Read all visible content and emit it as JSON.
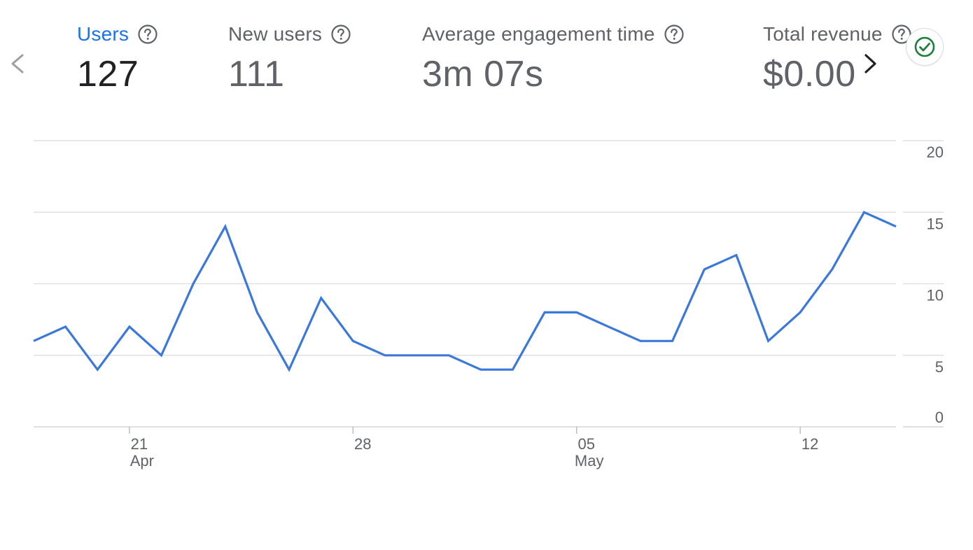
{
  "metrics": [
    {
      "label": "Users",
      "value": "127",
      "active": true
    },
    {
      "label": "New users",
      "value": "111",
      "active": false
    },
    {
      "label": "Average engagement time",
      "value": "3m 07s",
      "active": false
    },
    {
      "label": "Total revenue",
      "value": "$0.00",
      "active": false
    }
  ],
  "icons": {
    "prev": "chevron-left-icon",
    "next": "chevron-right-icon",
    "help": "help-circle-icon",
    "status": "check-circle-icon"
  },
  "colors": {
    "accent": "#1a73e8",
    "line": "#3b78dc",
    "status_green": "#188038",
    "grid": "#e0e0e0"
  },
  "chart_data": {
    "type": "line",
    "x": [
      "2024-04-18",
      "2024-04-19",
      "2024-04-20",
      "2024-04-21",
      "2024-04-22",
      "2024-04-23",
      "2024-04-24",
      "2024-04-25",
      "2024-04-26",
      "2024-04-27",
      "2024-04-28",
      "2024-04-29",
      "2024-04-30",
      "2024-05-01",
      "2024-05-02",
      "2024-05-03",
      "2024-05-04",
      "2024-05-05",
      "2024-05-06",
      "2024-05-07",
      "2024-05-08",
      "2024-05-09",
      "2024-05-10",
      "2024-05-11",
      "2024-05-12",
      "2024-05-13",
      "2024-05-14",
      "2024-05-15"
    ],
    "series": [
      {
        "values": [
          6,
          7,
          4,
          7,
          5,
          10,
          14,
          8,
          4,
          9,
          6,
          5,
          5,
          5,
          4,
          4,
          8,
          8,
          7,
          6,
          6,
          11,
          12,
          6,
          8,
          11,
          15,
          14
        ]
      }
    ],
    "ylim": [
      0,
      20
    ],
    "yticks": [
      "0",
      "5",
      "10",
      "15",
      "20"
    ],
    "xticks": [
      {
        "date": "2024-04-21",
        "day": "21",
        "month": "Apr"
      },
      {
        "date": "2024-04-28",
        "day": "28",
        "month": ""
      },
      {
        "date": "2024-05-05",
        "day": "05",
        "month": "May"
      },
      {
        "date": "2024-05-12",
        "day": "12",
        "month": ""
      }
    ],
    "grid": true,
    "legend": "none"
  }
}
